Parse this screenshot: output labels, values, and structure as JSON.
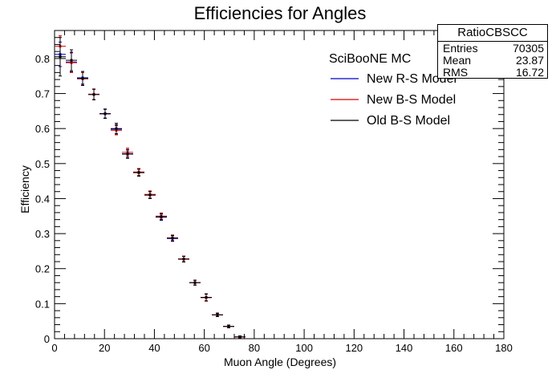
{
  "chart_data": {
    "type": "scatter",
    "title": "Efficiencies for Angles",
    "xlabel": "Muon Angle (Degrees)",
    "ylabel": "Efficiency",
    "xlim": [
      0,
      180
    ],
    "ylim": [
      0,
      0.88
    ],
    "x_ticks": [
      "0",
      "20",
      "40",
      "60",
      "80",
      "100",
      "120",
      "140",
      "160",
      "180"
    ],
    "y_ticks": [
      "0",
      "0.1",
      "0.2",
      "0.3",
      "0.4",
      "0.5",
      "0.6",
      "0.7",
      "0.8"
    ],
    "grid": false,
    "legend_header": "SciBooNE MC",
    "legend_position": "top-right",
    "bin_half_width": 2.25,
    "series": [
      {
        "name": "New R-S Model",
        "color": "#0000cc",
        "x": [
          2.25,
          6.75,
          11.25,
          15.75,
          20.25,
          24.75,
          29.25,
          33.75,
          38.25,
          42.75,
          47.25,
          51.75,
          56.25,
          60.75,
          65.25,
          69.75,
          74.25
        ],
        "y": [
          0.812,
          0.79,
          0.745,
          0.698,
          0.643,
          0.598,
          0.528,
          0.475,
          0.41,
          0.347,
          0.286,
          0.227,
          0.16,
          0.118,
          0.068,
          0.035,
          0.005
        ],
        "err": [
          0.035,
          0.028,
          0.018,
          0.015,
          0.013,
          0.013,
          0.012,
          0.01,
          0.01,
          0.009,
          0.008,
          0.008,
          0.007,
          0.01,
          0.005,
          0.004,
          0.003
        ]
      },
      {
        "name": "New B-S Model",
        "color": "#dd0000",
        "x": [
          2.25,
          6.75,
          11.25,
          15.75,
          20.25,
          24.75,
          29.25,
          33.75,
          38.25,
          42.75,
          47.25,
          51.75,
          56.25,
          60.75,
          65.25,
          69.75,
          74.25
        ],
        "y": [
          0.835,
          0.788,
          0.742,
          0.698,
          0.642,
          0.595,
          0.532,
          0.476,
          0.412,
          0.35,
          0.288,
          0.228,
          0.16,
          0.117,
          0.068,
          0.035,
          0.005
        ],
        "err": [
          0.03,
          0.028,
          0.018,
          0.015,
          0.013,
          0.013,
          0.012,
          0.01,
          0.01,
          0.009,
          0.008,
          0.008,
          0.007,
          0.01,
          0.005,
          0.004,
          0.003
        ]
      },
      {
        "name": "Old B-S Model",
        "color": "#000000",
        "x": [
          2.25,
          6.75,
          11.25,
          15.75,
          20.25,
          24.75,
          29.25,
          33.75,
          38.25,
          42.75,
          47.25,
          51.75,
          56.25,
          60.75,
          65.25,
          69.75,
          74.25
        ],
        "y": [
          0.805,
          0.795,
          0.743,
          0.697,
          0.642,
          0.6,
          0.527,
          0.474,
          0.41,
          0.348,
          0.287,
          0.227,
          0.16,
          0.118,
          0.068,
          0.035,
          0.005
        ],
        "err": [
          0.055,
          0.03,
          0.02,
          0.015,
          0.013,
          0.015,
          0.012,
          0.01,
          0.01,
          0.009,
          0.008,
          0.008,
          0.007,
          0.01,
          0.005,
          0.004,
          0.003
        ]
      }
    ]
  },
  "stats": {
    "title": "RatioCBSCC",
    "entries_label": "Entries",
    "entries": "70305",
    "mean_label": "Mean",
    "mean": "23.87",
    "rms_label": "RMS",
    "rms": "16.72"
  }
}
